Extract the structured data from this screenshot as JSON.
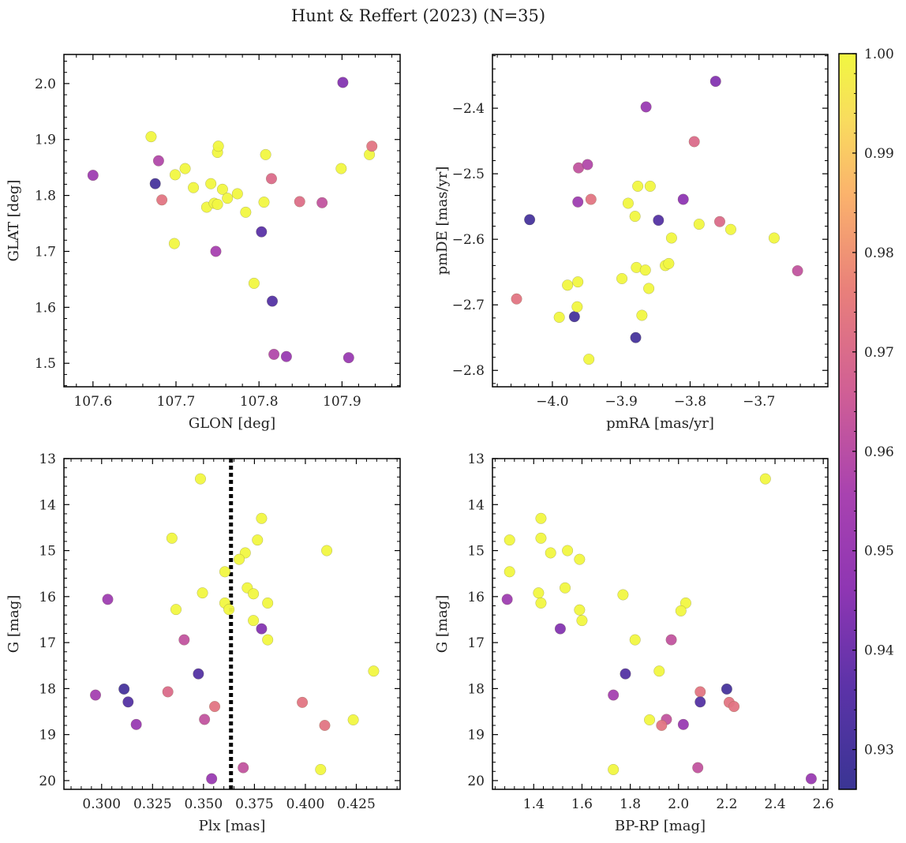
{
  "title": "Hunt & Reffert (2023) (N=35)",
  "colorbar": {
    "range": [
      0.926,
      1.0
    ],
    "ticks": [
      0.93,
      0.94,
      0.95,
      0.96,
      0.97,
      0.98,
      0.99,
      1.0
    ],
    "tick_labels": [
      "0.93",
      "0.94",
      "0.95",
      "0.96",
      "0.97",
      "0.98",
      "0.99",
      "1.00"
    ]
  },
  "chart_data": [
    {
      "type": "scatter",
      "id": "glon-glat",
      "title": "",
      "xlabel": "GLON [deg]",
      "ylabel": "GLAT [deg]",
      "xlim": [
        107.565,
        107.97
      ],
      "ylim": [
        1.458,
        2.052
      ],
      "y_inverted": false,
      "xticks": [
        107.6,
        107.7,
        107.8,
        107.9
      ],
      "xtick_labels": [
        "107.6",
        "107.7",
        "107.8",
        "107.9"
      ],
      "yticks": [
        1.5,
        1.6,
        1.7,
        1.8,
        1.9,
        2.0
      ],
      "ytick_labels": [
        "1.5",
        "1.6",
        "1.7",
        "1.8",
        "1.9",
        "2.0"
      ],
      "points": [
        {
          "x": 107.6,
          "y": 1.836,
          "c": 0.952
        },
        {
          "x": 107.675,
          "y": 1.821,
          "c": 0.93
        },
        {
          "x": 107.67,
          "y": 1.905,
          "c": 1.0
        },
        {
          "x": 107.679,
          "y": 1.862,
          "c": 0.958
        },
        {
          "x": 107.683,
          "y": 1.792,
          "c": 0.973
        },
        {
          "x": 107.699,
          "y": 1.837,
          "c": 1.0
        },
        {
          "x": 107.698,
          "y": 1.714,
          "c": 1.0
        },
        {
          "x": 107.711,
          "y": 1.848,
          "c": 1.0
        },
        {
          "x": 107.721,
          "y": 1.814,
          "c": 1.0
        },
        {
          "x": 107.737,
          "y": 1.779,
          "c": 1.0
        },
        {
          "x": 107.742,
          "y": 1.821,
          "c": 1.0
        },
        {
          "x": 107.746,
          "y": 1.786,
          "c": 1.0
        },
        {
          "x": 107.748,
          "y": 1.7,
          "c": 0.955
        },
        {
          "x": 107.75,
          "y": 1.877,
          "c": 1.0
        },
        {
          "x": 107.751,
          "y": 1.888,
          "c": 1.0
        },
        {
          "x": 107.75,
          "y": 1.784,
          "c": 1.0
        },
        {
          "x": 107.756,
          "y": 1.811,
          "c": 1.0
        },
        {
          "x": 107.762,
          "y": 1.795,
          "c": 1.0
        },
        {
          "x": 107.774,
          "y": 1.803,
          "c": 1.0
        },
        {
          "x": 107.784,
          "y": 1.77,
          "c": 1.0
        },
        {
          "x": 107.794,
          "y": 1.643,
          "c": 1.0
        },
        {
          "x": 107.803,
          "y": 1.735,
          "c": 0.936
        },
        {
          "x": 107.806,
          "y": 1.788,
          "c": 1.0
        },
        {
          "x": 107.808,
          "y": 1.873,
          "c": 1.0
        },
        {
          "x": 107.815,
          "y": 1.83,
          "c": 0.97
        },
        {
          "x": 107.816,
          "y": 1.611,
          "c": 0.934
        },
        {
          "x": 107.818,
          "y": 1.516,
          "c": 0.958
        },
        {
          "x": 107.833,
          "y": 1.512,
          "c": 0.95
        },
        {
          "x": 107.849,
          "y": 1.789,
          "c": 0.971
        },
        {
          "x": 107.876,
          "y": 1.787,
          "c": 0.962
        },
        {
          "x": 107.899,
          "y": 1.848,
          "c": 1.0
        },
        {
          "x": 107.901,
          "y": 2.002,
          "c": 0.944
        },
        {
          "x": 107.908,
          "y": 1.51,
          "c": 0.95
        },
        {
          "x": 107.933,
          "y": 1.873,
          "c": 1.0
        },
        {
          "x": 107.936,
          "y": 1.888,
          "c": 0.973
        }
      ]
    },
    {
      "type": "scatter",
      "id": "pmra-pmde",
      "title": "",
      "xlabel": "pmRA [mas/yr]",
      "ylabel": "pmDE [mas/yr]",
      "xlim": [
        -4.087,
        -3.6
      ],
      "ylim": [
        -2.825,
        -2.318
      ],
      "y_inverted": false,
      "xticks": [
        -4.0,
        -3.9,
        -3.8,
        -3.7
      ],
      "xtick_labels": [
        "−4.0",
        "−3.9",
        "−3.8",
        "−3.7"
      ],
      "yticks": [
        -2.8,
        -2.7,
        -2.6,
        -2.5,
        -2.4
      ],
      "ytick_labels": [
        "−2.8",
        "−2.7",
        "−2.6",
        "−2.5",
        "−2.4"
      ],
      "points": [
        {
          "x": -4.052,
          "y": -2.691,
          "c": 0.973
        },
        {
          "x": -4.033,
          "y": -2.57,
          "c": 0.93
        },
        {
          "x": -3.99,
          "y": -2.719,
          "c": 1.0
        },
        {
          "x": -3.978,
          "y": -2.67,
          "c": 1.0
        },
        {
          "x": -3.968,
          "y": -2.718,
          "c": 0.93
        },
        {
          "x": -3.964,
          "y": -2.703,
          "c": 1.0
        },
        {
          "x": -3.963,
          "y": -2.665,
          "c": 1.0
        },
        {
          "x": -3.963,
          "y": -2.543,
          "c": 0.952
        },
        {
          "x": -3.962,
          "y": -2.491,
          "c": 0.962
        },
        {
          "x": -3.949,
          "y": -2.486,
          "c": 0.958
        },
        {
          "x": -3.947,
          "y": -2.783,
          "c": 1.0
        },
        {
          "x": -3.944,
          "y": -2.539,
          "c": 0.973
        },
        {
          "x": -3.899,
          "y": -2.66,
          "c": 1.0
        },
        {
          "x": -3.89,
          "y": -2.545,
          "c": 1.0
        },
        {
          "x": -3.88,
          "y": -2.565,
          "c": 1.0
        },
        {
          "x": -3.879,
          "y": -2.75,
          "c": 0.93
        },
        {
          "x": -3.878,
          "y": -2.643,
          "c": 1.0
        },
        {
          "x": -3.876,
          "y": -2.519,
          "c": 1.0
        },
        {
          "x": -3.87,
          "y": -2.716,
          "c": 1.0
        },
        {
          "x": -3.865,
          "y": -2.647,
          "c": 1.0
        },
        {
          "x": -3.864,
          "y": -2.398,
          "c": 0.95
        },
        {
          "x": -3.86,
          "y": -2.675,
          "c": 1.0
        },
        {
          "x": -3.858,
          "y": -2.519,
          "c": 1.0
        },
        {
          "x": -3.846,
          "y": -2.571,
          "c": 0.934
        },
        {
          "x": -3.836,
          "y": -2.64,
          "c": 1.0
        },
        {
          "x": -3.831,
          "y": -2.637,
          "c": 1.0
        },
        {
          "x": -3.827,
          "y": -2.598,
          "c": 1.0
        },
        {
          "x": -3.81,
          "y": -2.539,
          "c": 0.946
        },
        {
          "x": -3.794,
          "y": -2.451,
          "c": 0.97
        },
        {
          "x": -3.787,
          "y": -2.577,
          "c": 1.0
        },
        {
          "x": -3.763,
          "y": -2.359,
          "c": 0.944
        },
        {
          "x": -3.757,
          "y": -2.573,
          "c": 0.97
        },
        {
          "x": -3.741,
          "y": -2.585,
          "c": 1.0
        },
        {
          "x": -3.678,
          "y": -2.598,
          "c": 1.0
        },
        {
          "x": -3.644,
          "y": -2.648,
          "c": 0.962
        }
      ]
    },
    {
      "type": "scatter",
      "id": "plx-g",
      "title": "",
      "xlabel": "Plx [mas]",
      "ylabel": "G [mag]",
      "xlim": [
        0.2815,
        0.4465
      ],
      "ylim": [
        13.0,
        20.19
      ],
      "y_inverted": true,
      "xticks": [
        0.3,
        0.325,
        0.35,
        0.375,
        0.4,
        0.425
      ],
      "xtick_labels": [
        "0.300",
        "0.325",
        "0.350",
        "0.375",
        "0.400",
        "0.425"
      ],
      "yticks": [
        13,
        14,
        15,
        16,
        17,
        18,
        19,
        20
      ],
      "ytick_labels": [
        "13",
        "14",
        "15",
        "16",
        "17",
        "18",
        "19",
        "20"
      ],
      "vline": {
        "x": 0.3635,
        "style": "dotted"
      },
      "points": [
        {
          "x": 0.3485,
          "y": 13.44,
          "c": 1.0
        },
        {
          "x": 0.3785,
          "y": 14.3,
          "c": 1.0
        },
        {
          "x": 0.3345,
          "y": 14.73,
          "c": 1.0
        },
        {
          "x": 0.3765,
          "y": 14.77,
          "c": 1.0
        },
        {
          "x": 0.4105,
          "y": 15.0,
          "c": 1.0
        },
        {
          "x": 0.3705,
          "y": 15.05,
          "c": 1.0
        },
        {
          "x": 0.3675,
          "y": 15.19,
          "c": 1.0
        },
        {
          "x": 0.3605,
          "y": 15.46,
          "c": 1.0
        },
        {
          "x": 0.3715,
          "y": 15.81,
          "c": 1.0
        },
        {
          "x": 0.3495,
          "y": 15.92,
          "c": 1.0
        },
        {
          "x": 0.3745,
          "y": 15.94,
          "c": 1.0
        },
        {
          "x": 0.303,
          "y": 16.06,
          "c": 0.952
        },
        {
          "x": 0.3605,
          "y": 16.14,
          "c": 1.0
        },
        {
          "x": 0.3815,
          "y": 16.14,
          "c": 1.0
        },
        {
          "x": 0.3625,
          "y": 16.28,
          "c": 1.0
        },
        {
          "x": 0.3365,
          "y": 16.28,
          "c": 1.0
        },
        {
          "x": 0.3745,
          "y": 16.52,
          "c": 1.0
        },
        {
          "x": 0.3785,
          "y": 16.7,
          "c": 0.944
        },
        {
          "x": 0.3405,
          "y": 16.94,
          "c": 0.962
        },
        {
          "x": 0.3815,
          "y": 16.94,
          "c": 1.0
        },
        {
          "x": 0.4335,
          "y": 17.62,
          "c": 1.0
        },
        {
          "x": 0.3475,
          "y": 17.68,
          "c": 0.934
        },
        {
          "x": 0.311,
          "y": 18.01,
          "c": 0.93
        },
        {
          "x": 0.3325,
          "y": 18.07,
          "c": 0.97
        },
        {
          "x": 0.297,
          "y": 18.14,
          "c": 0.954
        },
        {
          "x": 0.313,
          "y": 18.29,
          "c": 0.934
        },
        {
          "x": 0.3985,
          "y": 18.3,
          "c": 0.973
        },
        {
          "x": 0.3555,
          "y": 18.39,
          "c": 0.973
        },
        {
          "x": 0.4235,
          "y": 18.68,
          "c": 1.0
        },
        {
          "x": 0.3505,
          "y": 18.67,
          "c": 0.962
        },
        {
          "x": 0.317,
          "y": 18.78,
          "c": 0.95
        },
        {
          "x": 0.4095,
          "y": 18.8,
          "c": 0.973
        },
        {
          "x": 0.3695,
          "y": 19.72,
          "c": 0.962
        },
        {
          "x": 0.4075,
          "y": 19.76,
          "c": 1.0
        },
        {
          "x": 0.354,
          "y": 19.96,
          "c": 0.95
        }
      ]
    },
    {
      "type": "scatter",
      "id": "bprp-g",
      "title": "",
      "xlabel": "BP-RP [mag]",
      "ylabel": "G [mag]",
      "xlim": [
        1.229,
        2.619
      ],
      "ylim": [
        13.0,
        20.19
      ],
      "y_inverted": true,
      "xticks": [
        1.4,
        1.6,
        1.8,
        2.0,
        2.2,
        2.4,
        2.6
      ],
      "xtick_labels": [
        "1.4",
        "1.6",
        "1.8",
        "2.0",
        "2.2",
        "2.4",
        "2.6"
      ],
      "yticks": [
        13,
        14,
        15,
        16,
        17,
        18,
        19,
        20
      ],
      "ytick_labels": [
        "13",
        "14",
        "15",
        "16",
        "17",
        "18",
        "19",
        "20"
      ],
      "points": [
        {
          "x": 2.36,
          "y": 13.44,
          "c": 1.0
        },
        {
          "x": 1.43,
          "y": 14.3,
          "c": 1.0
        },
        {
          "x": 1.3,
          "y": 14.77,
          "c": 1.0
        },
        {
          "x": 1.43,
          "y": 14.73,
          "c": 1.0
        },
        {
          "x": 1.54,
          "y": 15.0,
          "c": 1.0
        },
        {
          "x": 1.47,
          "y": 15.05,
          "c": 1.0
        },
        {
          "x": 1.59,
          "y": 15.19,
          "c": 1.0
        },
        {
          "x": 1.3,
          "y": 15.46,
          "c": 1.0
        },
        {
          "x": 1.53,
          "y": 15.81,
          "c": 1.0
        },
        {
          "x": 1.42,
          "y": 15.92,
          "c": 1.0
        },
        {
          "x": 1.77,
          "y": 15.96,
          "c": 1.0
        },
        {
          "x": 1.29,
          "y": 16.06,
          "c": 0.952
        },
        {
          "x": 1.43,
          "y": 16.14,
          "c": 1.0
        },
        {
          "x": 2.03,
          "y": 16.14,
          "c": 1.0
        },
        {
          "x": 1.59,
          "y": 16.29,
          "c": 1.0
        },
        {
          "x": 2.01,
          "y": 16.31,
          "c": 1.0
        },
        {
          "x": 1.6,
          "y": 16.52,
          "c": 1.0
        },
        {
          "x": 1.51,
          "y": 16.7,
          "c": 0.944
        },
        {
          "x": 1.82,
          "y": 16.94,
          "c": 1.0
        },
        {
          "x": 1.97,
          "y": 16.94,
          "c": 0.962
        },
        {
          "x": 1.92,
          "y": 17.62,
          "c": 1.0
        },
        {
          "x": 1.78,
          "y": 17.68,
          "c": 0.934
        },
        {
          "x": 2.2,
          "y": 18.01,
          "c": 0.93
        },
        {
          "x": 2.09,
          "y": 18.07,
          "c": 0.973
        },
        {
          "x": 1.73,
          "y": 18.14,
          "c": 0.954
        },
        {
          "x": 2.09,
          "y": 18.29,
          "c": 0.934
        },
        {
          "x": 2.21,
          "y": 18.3,
          "c": 0.973
        },
        {
          "x": 2.23,
          "y": 18.39,
          "c": 0.973
        },
        {
          "x": 1.88,
          "y": 18.68,
          "c": 1.0
        },
        {
          "x": 1.95,
          "y": 18.67,
          "c": 0.962
        },
        {
          "x": 2.02,
          "y": 18.78,
          "c": 0.95
        },
        {
          "x": 1.93,
          "y": 18.8,
          "c": 0.973
        },
        {
          "x": 2.08,
          "y": 19.72,
          "c": 0.962
        },
        {
          "x": 1.73,
          "y": 19.76,
          "c": 1.0
        },
        {
          "x": 2.55,
          "y": 19.96,
          "c": 0.95
        }
      ]
    }
  ]
}
